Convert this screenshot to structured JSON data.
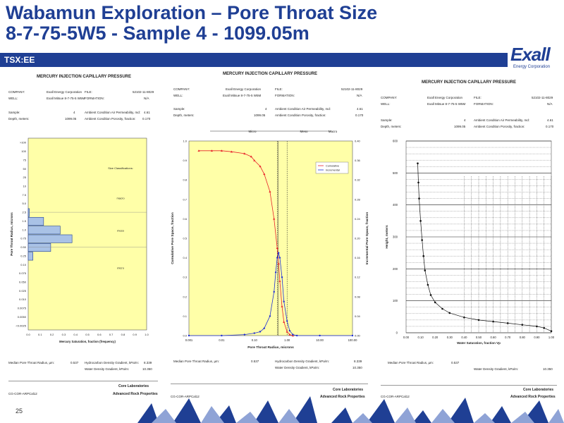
{
  "slide": {
    "title_line1": "Wabamun Exploration – Pore Throat Size",
    "title_line2": "8-7-75-5W5 - Sample 4 - 1099.05m",
    "section": "TSX:EE",
    "logo": "Exall",
    "logo_sub": "Energy Corporation",
    "page_number": "25"
  },
  "left_panel": {
    "heading": "MERCURY INJECTION CAPILLARY PRESSURE",
    "company_label": "COMPANY:",
    "company": "Exall Energy Corporation",
    "file_label": "FILE:",
    "file": "52102-11-8029",
    "well_label": "WELL:",
    "well": "Exall Mitsue 8-7-75-5 W5M",
    "formation_label": "FORMATION:",
    "formation": "N/A",
    "sample_label": "Sample:",
    "sample": "4",
    "perm_label": "Ambient Condition Air Permeability, md:",
    "perm": "4.61",
    "depth_label": "Depth, meters:",
    "depth": "1099.05",
    "poro_label": "Ambient Condition Porosity, fraction:",
    "poro": "0.170",
    "y_axis_label": "Pore Throat Radius, microns",
    "x_axis_label": "Mercury Saturation, fraction (frequency)",
    "size_class_label": "Size Classifications:",
    "classes": [
      "macro",
      "meso",
      "micro"
    ],
    "y_ticks": [
      ">100",
      "100",
      "75",
      "50",
      "25",
      "10",
      "7.5",
      "5.0",
      "2.5",
      "1.5",
      "1.0",
      "0.75",
      "0.50",
      "0.25",
      "0.10",
      "0.075",
      "0.050",
      "0.025",
      "0.010",
      "0.0075",
      "0.0050",
      "<0.0025"
    ],
    "x_ticks": [
      "0.0",
      "0.1",
      "0.2",
      "0.3",
      "0.4",
      "0.5",
      "0.6",
      "0.7",
      "0.8",
      "0.9",
      "1.0"
    ],
    "median_label": "Median Pore Throat Radius, µm:",
    "median": "0.537",
    "hc_grad_label": "Hydrocarbon Density Gradient, kPa/m:",
    "hc_grad": "8.339",
    "water_grad_label": "Water Density Gradient, kPa/m:",
    "water_grad": "10.350",
    "footer_left": "CG-COR-ARPCal12",
    "footer_right1": "Core Laboratories",
    "footer_right2": "Advanced Rock Properties"
  },
  "middle_panel": {
    "heading": "MERCURY INJECTION CAPILLARY PRESSURE",
    "company_label": "COMPANY:",
    "company": "Exall Energy Corporation",
    "file_label": "FILE:",
    "file": "52102-11-8029",
    "well_label": "WELL:",
    "well": "Exall Mitsue 8-7-75-5 W5M",
    "formation_label": "FORMATION:",
    "formation": "N/A",
    "sample_label": "Sample:",
    "sample": "4",
    "perm_label": "Ambient Condition Air Permeability, md:",
    "perm": "4.61",
    "depth_label": "Depth, meters:",
    "depth": "1099.05",
    "poro_label": "Ambient Condition Porosity, fraction:",
    "poro": "0.170",
    "zones": [
      "Micro",
      "Meso",
      "Macro"
    ],
    "left_axis_label": "Cumulative Pore Space, fraction",
    "right_axis_label": "Incremental Pore Space, fraction",
    "x_axis_label": "Pore Throat Radius, microns",
    "legend_cum": "Cumulative",
    "legend_inc": "Incremental",
    "left_ticks": [
      "0.0",
      "0.1",
      "0.2",
      "0.3",
      "0.4",
      "0.5",
      "0.6",
      "0.7",
      "0.8",
      "0.9",
      "1.0"
    ],
    "right_ticks": [
      "0.00",
      "0.04",
      "0.08",
      "0.12",
      "0.16",
      "0.20",
      "0.24",
      "0.28",
      "0.32",
      "0.36",
      "0.40"
    ],
    "x_ticks": [
      "0.001",
      "0.01",
      "0.10",
      "1.00",
      "10.00",
      "100.00"
    ],
    "median_label": "Median Pore Throat Radius, µm:",
    "median": "0.537",
    "hc_grad_label": "Hydrocarbon Density Gradient, kPa/m:",
    "hc_grad": "8.339",
    "water_grad_label": "Water Density Gradient, kPa/m:",
    "water_grad": "10.350",
    "footer_left": "CG-COR-ARPCal12",
    "footer_right1": "Core Laboratories",
    "footer_right2": "Advanced Rock Properties"
  },
  "right_panel": {
    "heading": "MERCURY INJECTION CAPILLARY PRESSURE",
    "company_label": "COMPANY:",
    "company": "Exall Energy Corporation",
    "file_label": "FILE:",
    "file": "52102-11-8029",
    "well_label": "WELL:",
    "well": "Exall Mitsue 8-7-75-5 W5M",
    "formation_label": "FORMATION:",
    "formation": "N/A",
    "sample_label": "Sample:",
    "sample": "4",
    "perm_label": "Ambient Condition Air Permeability, md:",
    "perm": "4.61",
    "depth_label": "Depth, meters:",
    "depth": "1099.05",
    "poro_label": "Ambient Condition Porosity, fraction:",
    "poro": "0.170",
    "y_axis_label": "Height, meters",
    "x_axis_label": "Water Saturation, fraction Vp",
    "y_ticks": [
      "0",
      "100",
      "200",
      "300",
      "400",
      "500",
      "600"
    ],
    "x_ticks": [
      "0.00",
      "0.10",
      "0.20",
      "0.30",
      "0.40",
      "0.50",
      "0.60",
      "0.70",
      "0.80",
      "0.90",
      "1.00"
    ],
    "median_label": "Median Pore Throat Radius, µm:",
    "median": "0.537",
    "water_grad_label": "Water Density Gradient, kPa/m:",
    "water_grad": "10.350",
    "footer_left": "CG-COR-ARPCal12",
    "footer_right1": "Core Laboratories",
    "footer_right2": "Advanced Rock Properties"
  },
  "chart_data": [
    {
      "type": "bar",
      "orientation": "horizontal",
      "categories": [
        ">100",
        "100",
        "75",
        "50",
        "25",
        "10",
        "7.5",
        "5.0",
        "2.5",
        "1.5",
        "1.0",
        "0.75",
        "0.50",
        "0.25",
        "0.10",
        "0.075",
        "0.050",
        "0.025",
        "0.010",
        "0.0075",
        "0.0050",
        "<0.0025"
      ],
      "values": [
        0,
        0,
        0,
        0,
        0,
        0,
        0,
        0,
        0.01,
        0.13,
        0.27,
        0.37,
        0.19,
        0.04,
        0,
        0,
        0,
        0,
        0,
        0,
        0,
        0
      ],
      "xlabel": "Mercury Saturation, fraction (frequency)",
      "ylabel": "Pore Throat Radius, microns",
      "xlim": [
        0,
        1
      ]
    },
    {
      "type": "line",
      "xscale": "log",
      "xlim": [
        0.001,
        100
      ],
      "xlabel": "Pore Throat Radius, microns",
      "series": [
        {
          "name": "Cumulative",
          "axis": "left",
          "ylim": [
            0,
            1
          ],
          "x": [
            0.002,
            0.005,
            0.01,
            0.02,
            0.05,
            0.08,
            0.1,
            0.15,
            0.2,
            0.3,
            0.4,
            0.5,
            0.55,
            0.6,
            0.7,
            0.8,
            1.0,
            1.2,
            1.5
          ],
          "y": [
            0.95,
            0.95,
            0.95,
            0.945,
            0.935,
            0.92,
            0.9,
            0.87,
            0.83,
            0.74,
            0.6,
            0.45,
            0.37,
            0.28,
            0.15,
            0.07,
            0.02,
            0.005,
            0.0
          ]
        },
        {
          "name": "Incremental",
          "axis": "right",
          "ylim": [
            0,
            0.4
          ],
          "x": [
            0.001,
            0.01,
            0.05,
            0.1,
            0.15,
            0.2,
            0.3,
            0.4,
            0.45,
            0.5,
            0.55,
            0.6,
            0.7,
            0.8,
            1.0,
            1.2,
            1.5,
            2.0,
            10.0,
            100.0
          ],
          "y": [
            0.0,
            0.0,
            0.002,
            0.005,
            0.008,
            0.015,
            0.04,
            0.09,
            0.13,
            0.16,
            0.17,
            0.16,
            0.12,
            0.07,
            0.03,
            0.01,
            0.002,
            0.0,
            0.0,
            0.0
          ]
        }
      ]
    },
    {
      "type": "scatter",
      "xlabel": "Water Saturation, fraction Vp",
      "ylabel": "Height, meters",
      "xlim": [
        0,
        1
      ],
      "ylim": [
        0,
        600
      ],
      "x": [
        0.08,
        0.085,
        0.09,
        0.1,
        0.11,
        0.12,
        0.13,
        0.15,
        0.17,
        0.2,
        0.25,
        0.3,
        0.4,
        0.5,
        0.6,
        0.7,
        0.8,
        0.9,
        0.95,
        1.0
      ],
      "y": [
        530,
        470,
        420,
        350,
        290,
        240,
        195,
        150,
        118,
        95,
        75,
        62,
        48,
        40,
        35,
        30,
        25,
        20,
        15,
        5
      ]
    }
  ]
}
